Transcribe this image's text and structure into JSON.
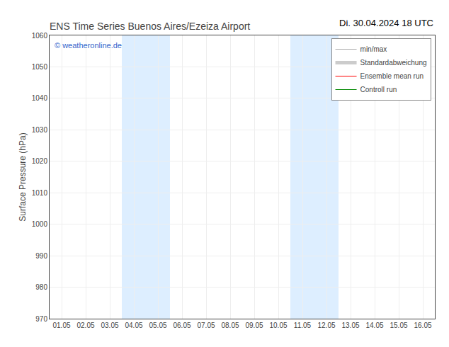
{
  "chart_data": {
    "type": "line",
    "title": "ENS Time Series Buenos Aires/Ezeiza Airport",
    "subtitle": "Di. 30.04.2024 18 UTC",
    "y_label": "Surface Pressure (hPa)",
    "categories": [
      "01.05",
      "02.05",
      "03.05",
      "04.05",
      "05.05",
      "06.05",
      "07.05",
      "08.05",
      "09.05",
      "10.05",
      "11.05",
      "12.05",
      "13.05",
      "14.05",
      "15.05",
      "16.05"
    ],
    "series": [
      {
        "name": "min/max",
        "color": "#aaaaaa",
        "values": [
          null,
          null,
          null,
          null,
          null,
          null,
          null,
          null,
          null,
          null,
          null,
          null,
          null,
          null,
          null,
          null
        ]
      },
      {
        "name": "Standardabweichung",
        "color": "#cccccc",
        "values": [
          null,
          null,
          null,
          null,
          null,
          null,
          null,
          null,
          null,
          null,
          null,
          null,
          null,
          null,
          null,
          null
        ]
      },
      {
        "name": "Ensemble mean run",
        "color": "#ff0000",
        "values": [
          null,
          null,
          null,
          null,
          null,
          null,
          null,
          null,
          null,
          null,
          null,
          null,
          null,
          null,
          null,
          null
        ]
      },
      {
        "name": "Controll run",
        "color": "#008800",
        "values": [
          null,
          null,
          null,
          null,
          null,
          null,
          null,
          null,
          null,
          null,
          null,
          null,
          null,
          null,
          null,
          null
        ]
      }
    ],
    "shaded_regions": [
      {
        "from": "04.05",
        "to": "05.05",
        "color": "#ddeeff"
      },
      {
        "from": "11.05",
        "to": "12.05",
        "color": "#ddeeff"
      }
    ],
    "annotations": [
      {
        "text": "© weatheronline.de",
        "color": "#3366cc"
      }
    ],
    "ylim": [
      970,
      1060
    ],
    "yticks": [
      970,
      980,
      990,
      1000,
      1010,
      1020,
      1030,
      1040,
      1050,
      1060
    ],
    "grid": true,
    "legend": "upper right"
  }
}
